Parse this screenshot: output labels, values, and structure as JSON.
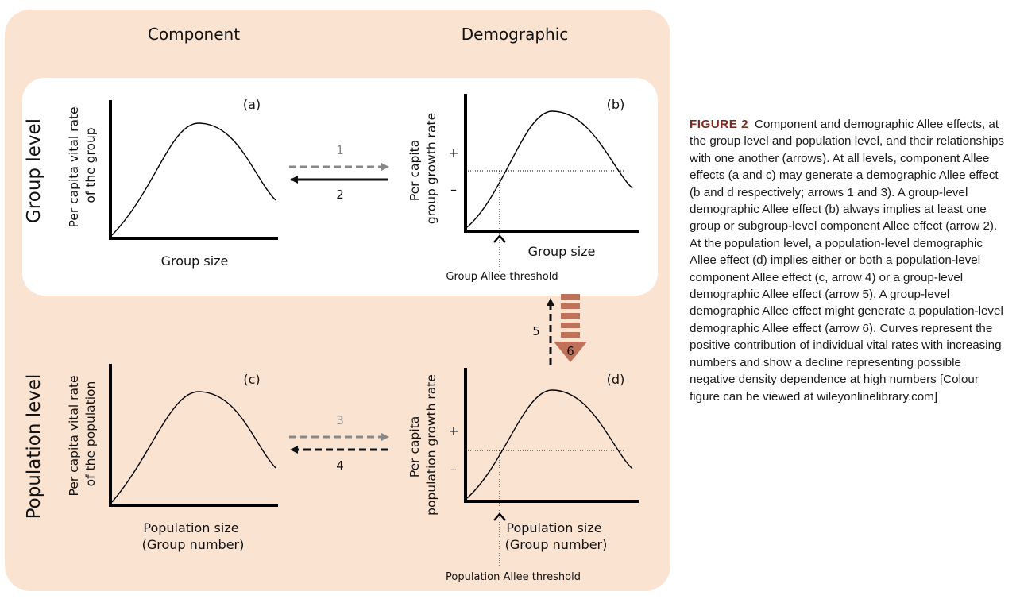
{
  "figure": {
    "headers": {
      "component": "Component",
      "demographic": "Demographic"
    },
    "side_labels": {
      "group": "Group level",
      "population": "Population level"
    },
    "panels": {
      "a": {
        "label": "(a)",
        "ylabel": [
          "Per capita vital rate",
          "of the group"
        ],
        "xlabel": "Group size"
      },
      "b": {
        "label": "(b)",
        "ylabel": [
          "Per capita",
          "group growth rate"
        ],
        "xlabel": "Group size",
        "plus": "+",
        "minus": "–",
        "threshold": "Group  Allee threshold"
      },
      "c": {
        "label": "(c)",
        "ylabel": [
          "Per capita vital rate",
          "of the population"
        ],
        "xlabel": [
          "Population size",
          "(Group number)"
        ]
      },
      "d": {
        "label": "(d)",
        "ylabel": [
          "Per capita",
          "population growth rate"
        ],
        "xlabel": [
          "Population size",
          "(Group number)"
        ],
        "plus": "+",
        "minus": "–",
        "threshold": "Population  Allee threshold"
      }
    },
    "arrows": {
      "a1": "1",
      "a2": "2",
      "a3": "3",
      "a4": "4",
      "a5": "5",
      "a6": "6"
    },
    "colors": {
      "background": "#fbe3d2",
      "group_box": "#ffffff",
      "arrow6": "#c0715a",
      "arrow_grey": "#888888",
      "arrow_black": "#111111"
    }
  },
  "caption": {
    "label": "FIGURE 2",
    "text": "Component and demographic Allee effects, at the group level and population level, and their relationships with one another (arrows). At all levels, component Allee effects (a and c) may generate a demographic Allee effect (b and d respectively; arrows 1 and 3). A group-level demographic Allee effect (b) always implies at least one group or subgroup-level component Allee effect (arrow 2). At the population level, a population-level demographic Allee effect (d) implies either or both a population-level component Allee effect (c, arrow 4) or a group-level demographic Allee effect (arrow 5). A group-level demographic Allee effect might generate a population-level demographic Allee effect (arrow 6). Curves represent the positive contribution of individual vital rates with increasing numbers and show a decline representing possible negative density dependence at high numbers [Colour figure can be viewed at wileyonlinelibrary.com]"
  }
}
